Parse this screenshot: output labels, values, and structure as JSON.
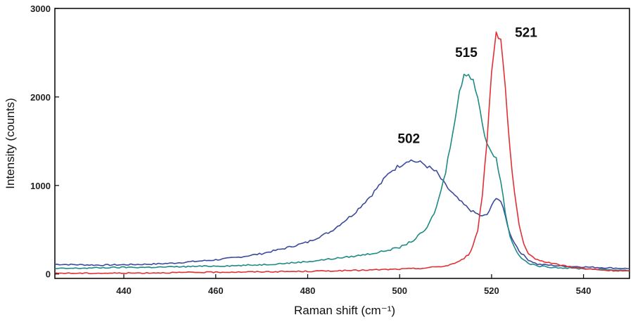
{
  "chart_data": {
    "type": "line",
    "title": "",
    "xlabel": "Raman shift (cm⁻¹)",
    "ylabel": "Intensity (counts)",
    "xlim": [
      425,
      550
    ],
    "ylim": [
      -50,
      3000
    ],
    "xticks": [
      "440",
      "460",
      "480",
      "500",
      "520",
      "540"
    ],
    "yticks": [
      "0",
      "1000",
      "2000",
      "3000"
    ],
    "grid": false,
    "legend": "none",
    "series": [
      {
        "color": "#3b4a9e",
        "x": [
          425,
          430,
          435,
          440,
          445,
          450,
          455,
          460,
          465,
          470,
          475,
          480,
          485,
          490,
          494,
          498,
          502,
          505,
          508,
          510,
          512,
          514,
          516,
          518,
          519,
          520,
          521,
          522,
          523,
          524,
          526,
          528,
          530,
          535,
          540,
          545,
          550
        ],
        "y": [
          110,
          105,
          100,
          105,
          110,
          120,
          140,
          160,
          190,
          230,
          290,
          360,
          480,
          680,
          900,
          1160,
          1290,
          1250,
          1150,
          1000,
          880,
          780,
          700,
          650,
          670,
          760,
          870,
          820,
          650,
          450,
          260,
          160,
          110,
          90,
          80,
          70,
          60
        ]
      },
      {
        "color": "#1f8a85",
        "x": [
          425,
          430,
          435,
          440,
          445,
          450,
          455,
          460,
          465,
          470,
          475,
          480,
          485,
          490,
          495,
          500,
          503,
          506,
          508,
          510,
          512,
          513,
          514,
          515,
          516,
          517,
          518,
          519,
          520,
          521,
          522,
          523,
          524,
          526,
          528,
          530,
          535,
          540,
          545,
          550
        ],
        "y": [
          60,
          65,
          70,
          75,
          75,
          80,
          85,
          90,
          95,
          105,
          120,
          140,
          170,
          200,
          240,
          300,
          380,
          520,
          750,
          1150,
          1750,
          2050,
          2230,
          2270,
          2200,
          2000,
          1700,
          1450,
          1400,
          1300,
          1050,
          700,
          420,
          200,
          120,
          90,
          70,
          60,
          50,
          40
        ]
      },
      {
        "color": "#e03034",
        "x": [
          425,
          430,
          440,
          450,
          460,
          470,
          480,
          490,
          500,
          505,
          510,
          513,
          515,
          516,
          517,
          518,
          519,
          520,
          521,
          522,
          523,
          524,
          525,
          526,
          527,
          528,
          530,
          535,
          540,
          545,
          550
        ],
        "y": [
          10,
          8,
          10,
          15,
          20,
          25,
          30,
          40,
          55,
          65,
          90,
          140,
          220,
          320,
          500,
          900,
          1500,
          2300,
          2730,
          2680,
          2100,
          1400,
          900,
          550,
          330,
          220,
          160,
          100,
          60,
          40,
          30
        ]
      }
    ],
    "annotations": [
      {
        "text": "502",
        "x": 502,
        "y": 1480
      },
      {
        "text": "515",
        "x": 514.5,
        "y": 2450
      },
      {
        "text": "521",
        "x": 527.5,
        "y": 2680
      }
    ]
  }
}
